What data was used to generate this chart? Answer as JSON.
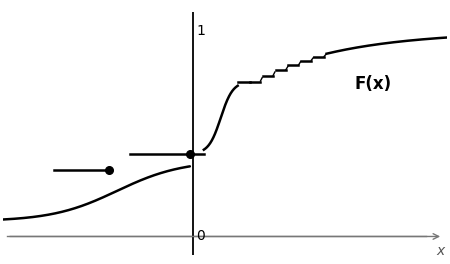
{
  "title": "",
  "xlabel": "x",
  "label_Fx": "F(x)",
  "background_color": "#ffffff",
  "line_color": "#000000",
  "figsize": [
    4.5,
    2.64
  ],
  "dpi": 100,
  "xmin": -4.5,
  "xmax": 6.0,
  "ymin": -0.2,
  "ymax": 1.15
}
